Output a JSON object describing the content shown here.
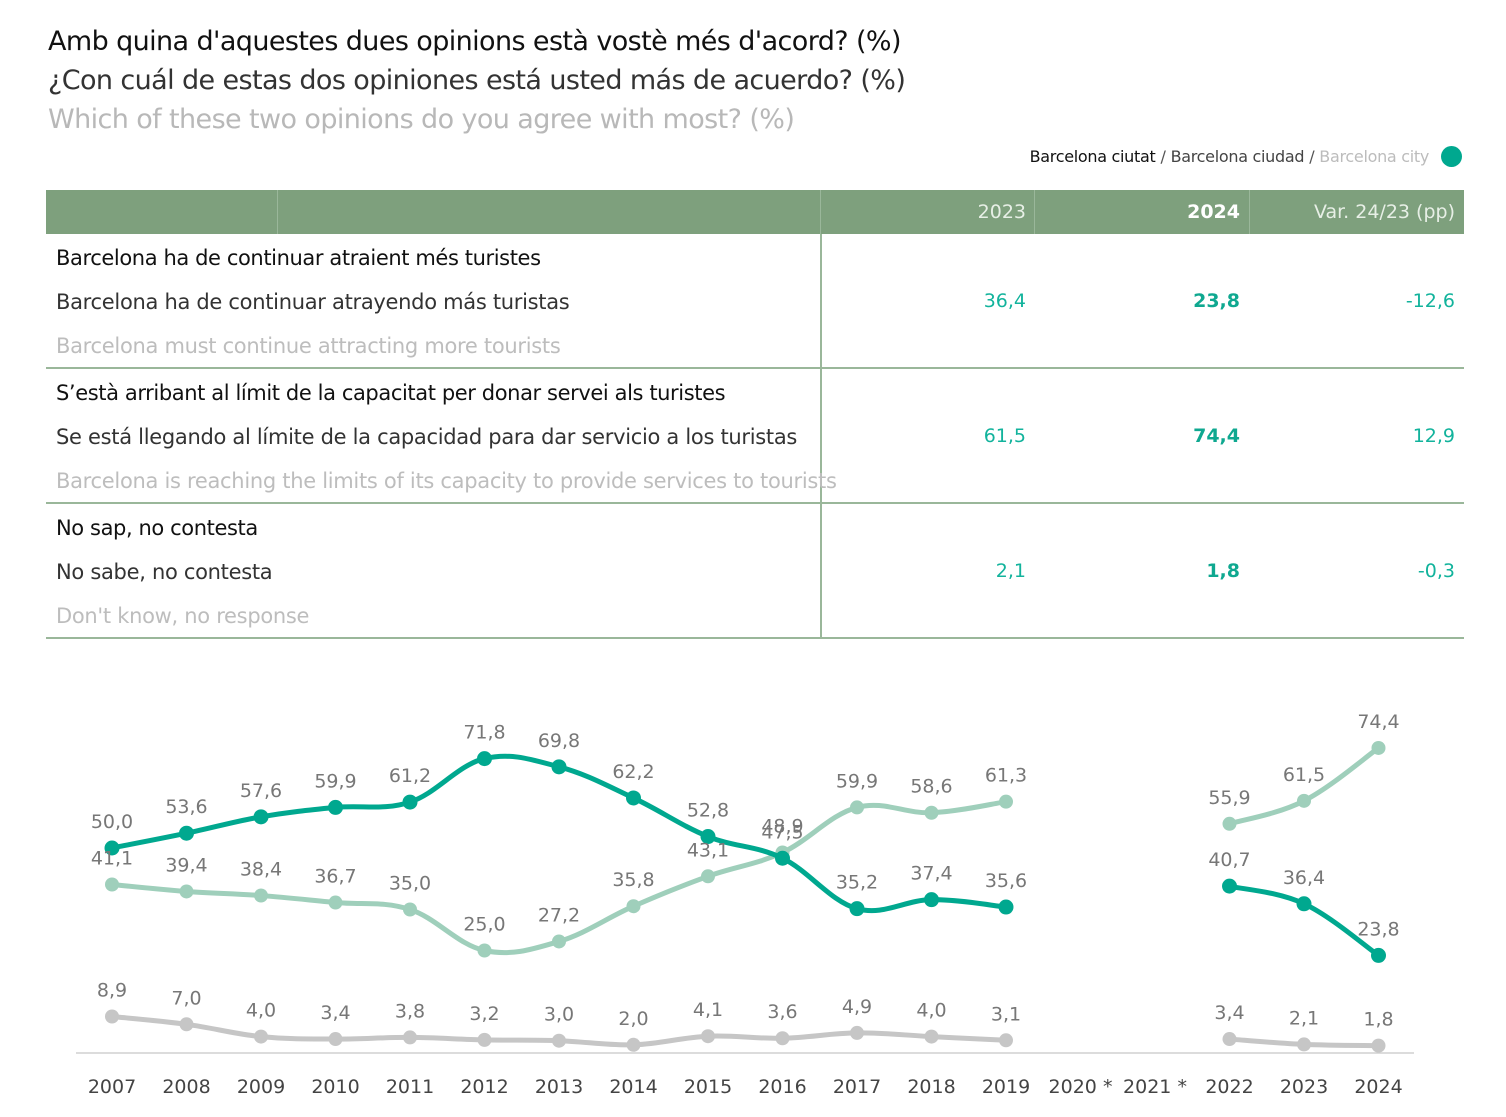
{
  "titles": {
    "ca": "Amb quina d'aquestes dues opinions està vostè més d'acord? (%)",
    "es": "¿Con cuál de estas dos opiniones está usted más de acuerdo? (%)",
    "en": "Which of these two opinions do you agree with most? (%)"
  },
  "legend": {
    "ca": "Barcelona ciutat",
    "sep": "/",
    "es": "Barcelona ciudad",
    "en": "Barcelona city",
    "color": "#00a88f"
  },
  "table": {
    "headers": {
      "y2023": "2023",
      "y2024": "2024",
      "var": "Var. 24/23 (pp)"
    },
    "rows": [
      {
        "ca": "Barcelona ha de continuar atraient més turistes",
        "es": "Barcelona ha de continuar atrayendo más turistas",
        "en": "Barcelona must continue attracting more tourists",
        "y2023": "36,4",
        "y2024": "23,8",
        "var": "-12,6"
      },
      {
        "ca": "S’està arribant al límit de la capacitat per donar servei als turistes",
        "es": "Se está llegando al límite de la capacidad para dar servicio a los turistas",
        "en": "Barcelona is reaching the limits of its capacity to provide services to tourists",
        "y2023": "61,5",
        "y2024": "74,4",
        "var": "12,9"
      },
      {
        "ca": "No sap, no contesta",
        "es": "No sabe, no contesta",
        "en": "Don't know, no response",
        "y2023": "2,1",
        "y2024": "1,8",
        "var": "-0,3"
      }
    ]
  },
  "chart_data": {
    "type": "line",
    "categories": [
      "2007",
      "2008",
      "2009",
      "2010",
      "2011",
      "2012",
      "2013",
      "2014",
      "2015",
      "2016",
      "2017",
      "2018",
      "2019",
      "2020 *",
      "2021 *",
      "2022",
      "2023",
      "2024"
    ],
    "ylim": [
      0,
      80
    ],
    "grid": false,
    "series": [
      {
        "color": "#00a88f",
        "values": [
          50.0,
          53.6,
          57.6,
          59.9,
          61.2,
          71.8,
          69.8,
          62.2,
          52.8,
          47.5,
          35.2,
          37.4,
          35.6,
          null,
          null,
          40.7,
          36.4,
          23.8
        ],
        "labels": [
          "50,0",
          "53,6",
          "57,6",
          "59,9",
          "61,2",
          "71,8",
          "69,8",
          "62,2",
          "52,8",
          "47,5",
          "35,2",
          "37,4",
          "35,6",
          null,
          null,
          "40,7",
          "36,4",
          "23,8"
        ]
      },
      {
        "color": "#9fcfbb",
        "values": [
          41.1,
          39.4,
          38.4,
          36.7,
          35.0,
          25.0,
          27.2,
          35.8,
          43.1,
          48.9,
          59.9,
          58.6,
          61.3,
          null,
          null,
          55.9,
          61.5,
          74.4
        ],
        "labels": [
          "41,1",
          "39,4",
          "38,4",
          "36,7",
          "35,0",
          "25,0",
          "27,2",
          "35,8",
          "43,1",
          "48,9",
          "59,9",
          "58,6",
          "61,3",
          null,
          null,
          "55,9",
          "61,5",
          "74,4"
        ]
      },
      {
        "color": "#c6c6c6",
        "values": [
          8.9,
          7.0,
          4.0,
          3.4,
          3.8,
          3.2,
          3.0,
          2.0,
          4.1,
          3.6,
          4.9,
          4.0,
          3.1,
          null,
          null,
          3.4,
          2.1,
          1.8
        ],
        "labels": [
          "8,9",
          "7,0",
          "4,0",
          "3,4",
          "3,8",
          "3,2",
          "3,0",
          "2,0",
          "4,1",
          "3,6",
          "4,9",
          "4,0",
          "3,1",
          null,
          null,
          "3,4",
          "2,1",
          "1,8"
        ]
      }
    ]
  }
}
